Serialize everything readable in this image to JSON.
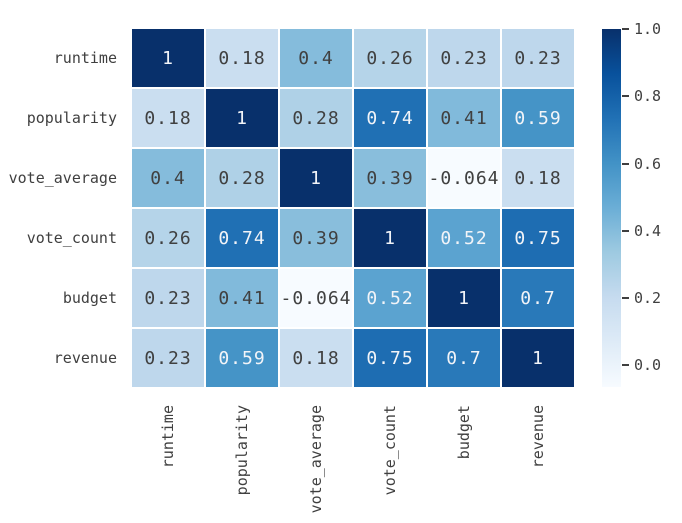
{
  "figure": {
    "background": "#ffffff"
  },
  "chart_data": {
    "type": "heatmap",
    "title": "",
    "xlabel": "",
    "ylabel": "",
    "categories": [
      "runtime",
      "popularity",
      "vote_average",
      "vote_count",
      "budget",
      "revenue"
    ],
    "matrix": [
      [
        1,
        0.18,
        0.4,
        0.26,
        0.23,
        0.23
      ],
      [
        0.18,
        1,
        0.28,
        0.74,
        0.41,
        0.59
      ],
      [
        0.4,
        0.28,
        1,
        0.39,
        -0.064,
        0.18
      ],
      [
        0.26,
        0.74,
        0.39,
        1,
        0.52,
        0.75
      ],
      [
        0.23,
        0.41,
        -0.064,
        0.52,
        1,
        0.7
      ],
      [
        0.23,
        0.59,
        0.18,
        0.75,
        0.7,
        1
      ]
    ],
    "vmin": -0.064,
    "vmax": 1.0,
    "colormap": "Blues",
    "colormap_stops": [
      {
        "t": 0.0,
        "color": "#f7fbff"
      },
      {
        "t": 0.125,
        "color": "#deebf7"
      },
      {
        "t": 0.25,
        "color": "#c6dbef"
      },
      {
        "t": 0.375,
        "color": "#9ecae1"
      },
      {
        "t": 0.5,
        "color": "#6baed6"
      },
      {
        "t": 0.625,
        "color": "#4292c6"
      },
      {
        "t": 0.75,
        "color": "#2171b5"
      },
      {
        "t": 0.875,
        "color": "#08519c"
      },
      {
        "t": 1.0,
        "color": "#08306b"
      }
    ],
    "grid": false,
    "legend_position": "right",
    "colorbar": {
      "ticks": [
        {
          "value": 1.0,
          "label": "1.0"
        },
        {
          "value": 0.8,
          "label": "0.8"
        },
        {
          "value": 0.6,
          "label": "0.6"
        },
        {
          "value": 0.4,
          "label": "0.4"
        },
        {
          "value": 0.2,
          "label": "0.2"
        },
        {
          "value": 0.0,
          "label": "0.0"
        }
      ]
    }
  },
  "colors": {
    "background": "#ffffff",
    "cell_gap": "#ffffff",
    "axis_text": "#3f3f3f",
    "annot_dark": "#404040",
    "annot_light": "#f2f4f8",
    "tick_mark": "#3f3f3f"
  }
}
